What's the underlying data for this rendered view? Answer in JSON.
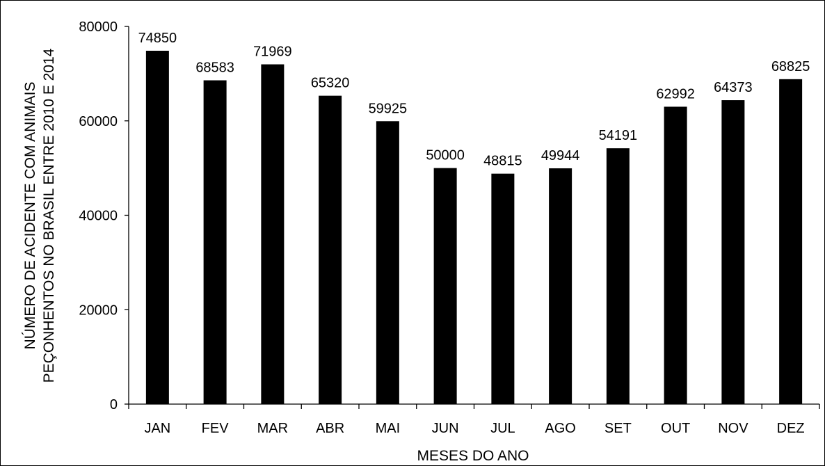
{
  "chart_data": {
    "type": "bar",
    "categories": [
      "JAN",
      "FEV",
      "MAR",
      "ABR",
      "MAI",
      "JUN",
      "JUL",
      "AGO",
      "SET",
      "OUT",
      "NOV",
      "DEZ"
    ],
    "values": [
      74850,
      68583,
      71969,
      65320,
      59925,
      50000,
      48815,
      49944,
      54191,
      62992,
      64373,
      68825
    ],
    "ylim": [
      0,
      80000
    ],
    "yticks": [
      0,
      20000,
      40000,
      60000,
      80000
    ],
    "xlabel": "MESES DO ANO",
    "ylabel_lines": [
      "NÚMERO DE ACIDENTE COM ANIMAIS",
      "PEÇONHENTOS NO BRASIL ENTRE 2010 E 2014"
    ],
    "bar_color": "#000000",
    "grid": false,
    "legend": "none",
    "data_labels": true
  }
}
